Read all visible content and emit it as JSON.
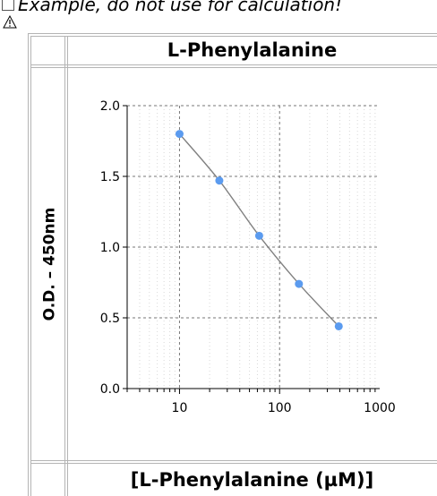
{
  "warning": {
    "text": "Example, do not use for calculation!",
    "icon": "warning-triangle-icon"
  },
  "chart_data": {
    "type": "scatter",
    "title": "L-Phenylalanine",
    "xlabel": "[L-Phenylalanine (µM)]",
    "ylabel": "O.D. – 450nm",
    "x_scale": "log",
    "xlim": [
      3,
      1000
    ],
    "ylim": [
      0,
      2.0
    ],
    "x_ticks": [
      10,
      100,
      1000
    ],
    "y_ticks": [
      0.0,
      0.5,
      1.0,
      1.5,
      2.0
    ],
    "x_tick_labels": [
      "10",
      "100",
      "1000"
    ],
    "y_tick_labels": [
      "0.0",
      "0.5",
      "1.0",
      "1.5",
      "2.0"
    ],
    "grid": true,
    "fit_line": true,
    "point_color": "#5b9bef",
    "line_color": "#808080",
    "points": [
      {
        "x": 10,
        "y": 1.8
      },
      {
        "x": 25,
        "y": 1.47
      },
      {
        "x": 62.5,
        "y": 1.08
      },
      {
        "x": 156,
        "y": 0.74
      },
      {
        "x": 390,
        "y": 0.44
      }
    ]
  }
}
